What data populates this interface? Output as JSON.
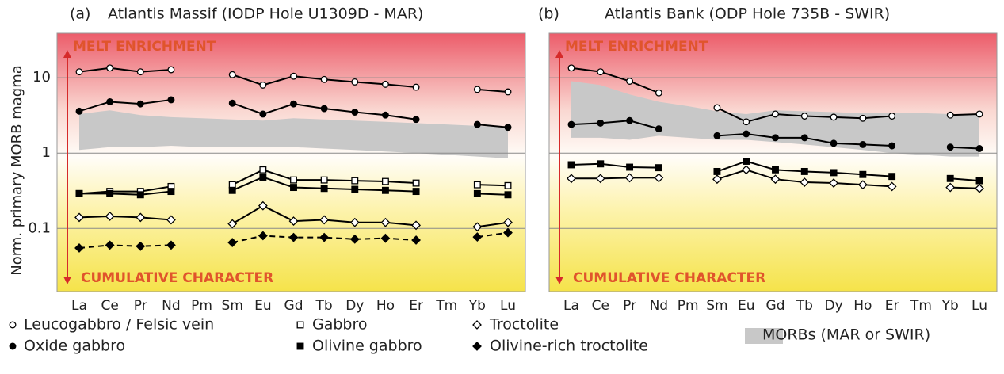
{
  "chart_data": [
    {
      "type": "line",
      "label": "(a)",
      "title": "Atlantis Massif (IODP Hole U1309D - MAR)",
      "y_label": "Norm. primary MORB magma",
      "log_scale": true,
      "grid": true,
      "tick_labels": true,
      "ylim": [
        0.0145,
        39
      ],
      "yticks": [
        0.1,
        1,
        10
      ],
      "annotations": [
        "MELT ENRICHMENT",
        "CUMULATIVE CHARACTER"
      ],
      "categories": [
        "La",
        "Ce",
        "Pr",
        "Nd",
        "Pm",
        "Sm",
        "Eu",
        "Gd",
        "Tb",
        "Dy",
        "Ho",
        "Er",
        "Tm",
        "Yb",
        "Lu"
      ],
      "band": {
        "color": "#c8c8c8",
        "upper": [
          3.3,
          3.7,
          3.2,
          3.0,
          2.9,
          2.8,
          2.7,
          2.9,
          2.8,
          2.7,
          2.6,
          2.5,
          2.4,
          2.3,
          2.2
        ],
        "lower": [
          1.1,
          1.2,
          1.2,
          1.25,
          1.2,
          1.2,
          1.2,
          1.2,
          1.15,
          1.1,
          1.05,
          1.0,
          0.95,
          0.9,
          0.85
        ]
      },
      "series": [
        {
          "marker": "circle-open",
          "color": "#000000",
          "dashed": false,
          "values": [
            12,
            13.5,
            12,
            12.8,
            null,
            11,
            8,
            10.5,
            9.5,
            8.8,
            8.2,
            7.5,
            null,
            7,
            6.5
          ]
        },
        {
          "marker": "circle-filled",
          "color": "#000000",
          "dashed": false,
          "values": [
            3.6,
            4.8,
            4.5,
            5.1,
            null,
            4.6,
            3.3,
            4.5,
            3.9,
            3.5,
            3.2,
            2.8,
            null,
            2.4,
            2.2
          ]
        },
        {
          "marker": "square-open",
          "color": "#000000",
          "dashed": false,
          "values": [
            0.29,
            0.31,
            0.31,
            0.36,
            null,
            0.38,
            0.6,
            0.44,
            0.44,
            0.43,
            0.42,
            0.4,
            null,
            0.38,
            0.37
          ]
        },
        {
          "marker": "square-filled",
          "color": "#000000",
          "dashed": false,
          "values": [
            0.29,
            0.29,
            0.28,
            0.31,
            null,
            0.32,
            0.48,
            0.35,
            0.34,
            0.33,
            0.32,
            0.31,
            null,
            0.29,
            0.28
          ]
        },
        {
          "marker": "diamond-open",
          "color": "#000000",
          "dashed": false,
          "values": [
            0.14,
            0.145,
            0.14,
            0.13,
            null,
            0.115,
            0.2,
            0.125,
            0.13,
            0.12,
            0.12,
            0.11,
            null,
            0.105,
            0.12
          ]
        },
        {
          "marker": "diamond-filled",
          "color": "#000000",
          "dashed": true,
          "values": [
            0.055,
            0.06,
            0.058,
            0.06,
            null,
            0.065,
            0.08,
            0.076,
            0.076,
            0.072,
            0.074,
            0.07,
            null,
            0.077,
            0.088
          ]
        }
      ]
    },
    {
      "type": "line",
      "label": "(b)",
      "title": "Atlantis Bank (ODP Hole 735B - SWIR)",
      "log_scale": true,
      "grid": true,
      "tick_labels": false,
      "ylim": [
        0.0145,
        39
      ],
      "yticks": [
        0.1,
        1,
        10
      ],
      "annotations": [
        "MELT ENRICHMENT",
        "CUMULATIVE CHARACTER"
      ],
      "categories": [
        "La",
        "Ce",
        "Pr",
        "Nd",
        "Pm",
        "Sm",
        "Eu",
        "Gd",
        "Tb",
        "Dy",
        "Ho",
        "Er",
        "Tm",
        "Yb",
        "Lu"
      ],
      "band": {
        "color": "#c8c8c8",
        "upper": [
          9,
          8,
          6,
          4.8,
          4.2,
          3.6,
          3.3,
          3.7,
          3.6,
          3.5,
          3.4,
          3.4,
          3.4,
          3.3,
          3.2
        ],
        "lower": [
          1.6,
          1.6,
          1.5,
          1.7,
          1.6,
          1.5,
          1.5,
          1.4,
          1.3,
          1.2,
          1.1,
          1.0,
          0.95,
          0.9,
          0.9
        ]
      },
      "series": [
        {
          "marker": "circle-open",
          "color": "#000000",
          "dashed": false,
          "values": [
            13.5,
            12,
            9,
            6.3,
            null,
            4,
            2.6,
            3.3,
            3.1,
            3,
            2.9,
            3.1,
            null,
            3.2,
            3.3
          ]
        },
        {
          "marker": "circle-filled",
          "color": "#000000",
          "dashed": false,
          "values": [
            2.4,
            2.5,
            2.7,
            2.1,
            null,
            1.7,
            1.8,
            1.6,
            1.6,
            1.35,
            1.3,
            1.25,
            null,
            1.2,
            1.15
          ]
        },
        {
          "marker": "square-filled",
          "color": "#000000",
          "dashed": false,
          "values": [
            0.7,
            0.72,
            0.65,
            0.64,
            null,
            0.57,
            0.78,
            0.6,
            0.57,
            0.55,
            0.52,
            0.49,
            null,
            0.46,
            0.43
          ]
        },
        {
          "marker": "diamond-open",
          "color": "#000000",
          "dashed": false,
          "values": [
            0.46,
            0.46,
            0.47,
            0.47,
            null,
            0.45,
            0.6,
            0.45,
            0.41,
            0.4,
            0.38,
            0.36,
            null,
            0.35,
            0.34
          ]
        }
      ]
    }
  ],
  "legend": {
    "entries": [
      {
        "name": "Leucogabbro / Felsic vein",
        "marker": "circle-open"
      },
      {
        "name": "Gabbro",
        "marker": "square-open"
      },
      {
        "name": "Troctolite",
        "marker": "diamond-open"
      },
      {
        "name": "Oxide gabbro",
        "marker": "circle-filled"
      },
      {
        "name": "Olivine gabbro",
        "marker": "square-filled"
      },
      {
        "name": "Olivine-rich troctolite",
        "marker": "diamond-filled"
      }
    ],
    "band_entry": {
      "name": "MORBs (MAR or SWIR)",
      "color": "#c8c8c8"
    }
  }
}
